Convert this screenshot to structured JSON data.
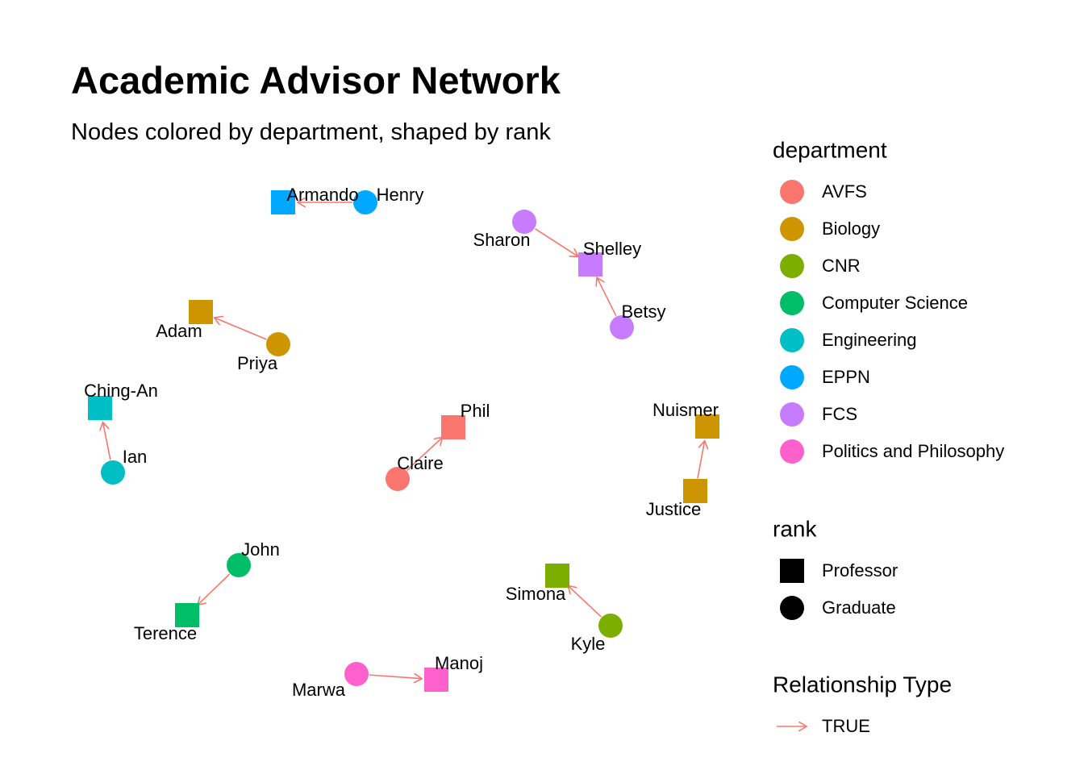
{
  "title": "Academic Advisor Network",
  "subtitle": "Nodes colored by department, shaped by rank",
  "nodes": [
    {
      "id": "armando",
      "label": "Armando",
      "department": "EPPN",
      "rank": "Professor"
    },
    {
      "id": "henry",
      "label": "Henry",
      "department": "EPPN",
      "rank": "Graduate"
    },
    {
      "id": "sharon",
      "label": "Sharon",
      "department": "FCS",
      "rank": "Graduate"
    },
    {
      "id": "shelley",
      "label": "Shelley",
      "department": "FCS",
      "rank": "Professor"
    },
    {
      "id": "betsy",
      "label": "Betsy",
      "department": "FCS",
      "rank": "Graduate"
    },
    {
      "id": "adam",
      "label": "Adam",
      "department": "Biology",
      "rank": "Professor"
    },
    {
      "id": "priya",
      "label": "Priya",
      "department": "Biology",
      "rank": "Graduate"
    },
    {
      "id": "ching-an",
      "label": "Ching-An",
      "department": "Engineering",
      "rank": "Professor"
    },
    {
      "id": "ian",
      "label": "Ian",
      "department": "Engineering",
      "rank": "Graduate"
    },
    {
      "id": "phil",
      "label": "Phil",
      "department": "AVFS",
      "rank": "Professor"
    },
    {
      "id": "claire",
      "label": "Claire",
      "department": "AVFS",
      "rank": "Graduate"
    },
    {
      "id": "nuismer",
      "label": "Nuismer",
      "department": "Biology",
      "rank": "Professor"
    },
    {
      "id": "justice",
      "label": "Justice",
      "department": "Biology",
      "rank": "Professor"
    },
    {
      "id": "john",
      "label": "John",
      "department": "Computer Science",
      "rank": "Graduate"
    },
    {
      "id": "terence",
      "label": "Terence",
      "department": "Computer Science",
      "rank": "Professor"
    },
    {
      "id": "simona",
      "label": "Simona",
      "department": "CNR",
      "rank": "Professor"
    },
    {
      "id": "kyle",
      "label": "Kyle",
      "department": "CNR",
      "rank": "Graduate"
    },
    {
      "id": "marwa",
      "label": "Marwa",
      "department": "Politics and Philosophy",
      "rank": "Graduate"
    },
    {
      "id": "manoj",
      "label": "Manoj",
      "department": "Politics and Philosophy",
      "rank": "Professor"
    }
  ],
  "edges": [
    {
      "from": "henry",
      "to": "armando"
    },
    {
      "from": "sharon",
      "to": "shelley"
    },
    {
      "from": "betsy",
      "to": "shelley"
    },
    {
      "from": "priya",
      "to": "adam"
    },
    {
      "from": "ian",
      "to": "ching-an"
    },
    {
      "from": "claire",
      "to": "phil"
    },
    {
      "from": "justice",
      "to": "nuismer"
    },
    {
      "from": "john",
      "to": "terence"
    },
    {
      "from": "kyle",
      "to": "simona"
    },
    {
      "from": "marwa",
      "to": "manoj"
    }
  ],
  "legend": {
    "department": {
      "title": "department",
      "items": [
        {
          "label": "AVFS",
          "color": "#F8766D"
        },
        {
          "label": "Biology",
          "color": "#CD9600"
        },
        {
          "label": "CNR",
          "color": "#7CAE00"
        },
        {
          "label": "Computer Science",
          "color": "#00BE67"
        },
        {
          "label": "Engineering",
          "color": "#00BFC4"
        },
        {
          "label": "EPPN",
          "color": "#00A9FF"
        },
        {
          "label": "FCS",
          "color": "#C77CFF"
        },
        {
          "label": "Politics and Philosophy",
          "color": "#FF61CC"
        }
      ]
    },
    "rank": {
      "title": "rank",
      "items": [
        {
          "label": "Professor",
          "shape": "square"
        },
        {
          "label": "Graduate",
          "shape": "circle"
        }
      ]
    },
    "relationship": {
      "title": "Relationship Type",
      "items": [
        {
          "label": "TRUE",
          "color": "#F8766D"
        }
      ]
    }
  }
}
